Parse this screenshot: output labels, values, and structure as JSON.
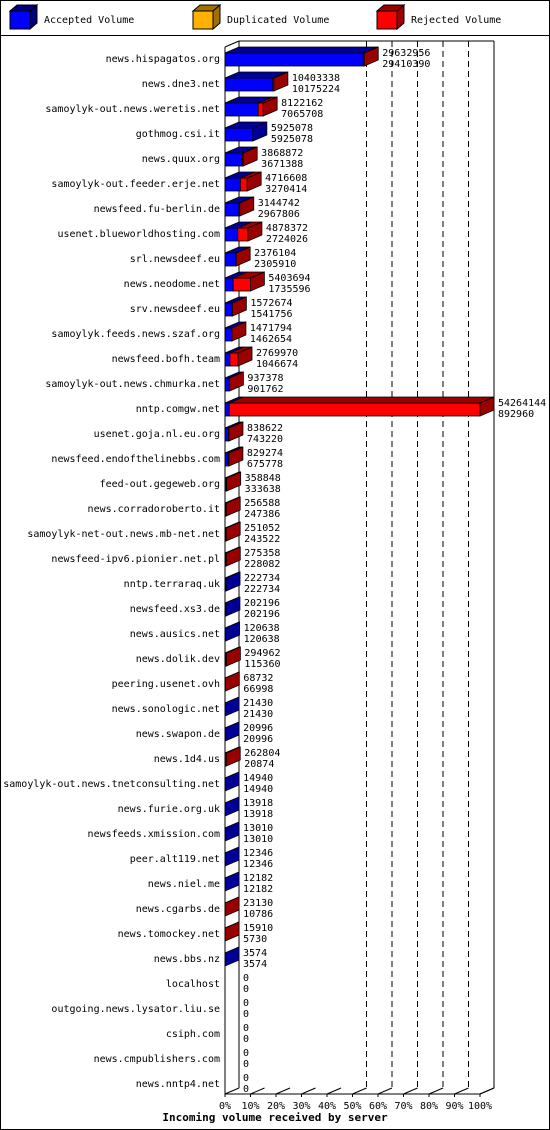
{
  "legend": [
    {
      "label": "Accepted Volume",
      "color": "#0000ff"
    },
    {
      "label": "Duplicated Volume",
      "color": "#ffb000"
    },
    {
      "label": "Rejected Volume",
      "color": "#ff0000"
    }
  ],
  "chart_data": {
    "type": "bar",
    "orientation": "horizontal",
    "title": "",
    "xlabel": "Incoming volume received by server",
    "ylabel": "",
    "xlim": [
      0,
      100
    ],
    "x_ticks": [
      "0%",
      "10%",
      "20%",
      "30%",
      "40%",
      "50%",
      "60%",
      "70%",
      "80%",
      "90%",
      "100%"
    ],
    "grid": "vertical dashed lines at 60%-100%",
    "legend_position": "top",
    "scale_max_value": 54264144,
    "series": [
      {
        "name": "Accepted Volume",
        "color": "#0000ff"
      },
      {
        "name": "Duplicated Volume",
        "color": "#ffb000"
      },
      {
        "name": "Rejected Volume",
        "color": "#ff0000"
      }
    ],
    "rows": [
      {
        "server": "news.hispagatos.org",
        "total": 29632956,
        "accepted": 29410390
      },
      {
        "server": "news.dne3.net",
        "total": 10403338,
        "accepted": 10175224
      },
      {
        "server": "samoylyk-out.news.weretis.net",
        "total": 8122162,
        "accepted": 7065708
      },
      {
        "server": "gothmog.csi.it",
        "total": 5925078,
        "accepted": 5925078
      },
      {
        "server": "news.quux.org",
        "total": 3868872,
        "accepted": 3671388
      },
      {
        "server": "samoylyk-out.feeder.erje.net",
        "total": 4716608,
        "accepted": 3270414
      },
      {
        "server": "newsfeed.fu-berlin.de",
        "total": 3144742,
        "accepted": 2967806
      },
      {
        "server": "usenet.blueworldhosting.com",
        "total": 4878372,
        "accepted": 2724026
      },
      {
        "server": "srl.newsdeef.eu",
        "total": 2376104,
        "accepted": 2305910
      },
      {
        "server": "news.neodome.net",
        "total": 5403694,
        "accepted": 1735596
      },
      {
        "server": "srv.newsdeef.eu",
        "total": 1572674,
        "accepted": 1541756
      },
      {
        "server": "samoylyk.feeds.news.szaf.org",
        "total": 1471794,
        "accepted": 1462654
      },
      {
        "server": "newsfeed.bofh.team",
        "total": 2769970,
        "accepted": 1046674
      },
      {
        "server": "samoylyk-out.news.chmurka.net",
        "total": 937378,
        "accepted": 901762
      },
      {
        "server": "nntp.comgw.net",
        "total": 54264144,
        "accepted": 892960
      },
      {
        "server": "usenet.goja.nl.eu.org",
        "total": 838622,
        "accepted": 743220
      },
      {
        "server": "newsfeed.endofthelinebbs.com",
        "total": 829274,
        "accepted": 675778
      },
      {
        "server": "feed-out.gegeweb.org",
        "total": 358848,
        "accepted": 333638
      },
      {
        "server": "news.corradoroberto.it",
        "total": 256588,
        "accepted": 247386
      },
      {
        "server": "samoylyk-net-out.news.mb-net.net",
        "total": 251052,
        "accepted": 243522
      },
      {
        "server": "newsfeed-ipv6.pionier.net.pl",
        "total": 275358,
        "accepted": 228082
      },
      {
        "server": "nntp.terraraq.uk",
        "total": 222734,
        "accepted": 222734
      },
      {
        "server": "newsfeed.xs3.de",
        "total": 202196,
        "accepted": 202196
      },
      {
        "server": "news.ausics.net",
        "total": 120638,
        "accepted": 120638
      },
      {
        "server": "news.dolik.dev",
        "total": 294962,
        "accepted": 115360
      },
      {
        "server": "peering.usenet.ovh",
        "total": 68732,
        "accepted": 66998
      },
      {
        "server": "news.sonologic.net",
        "total": 21430,
        "accepted": 21430
      },
      {
        "server": "news.swapon.de",
        "total": 20996,
        "accepted": 20996
      },
      {
        "server": "news.1d4.us",
        "total": 262804,
        "accepted": 20874
      },
      {
        "server": "samoylyk-out.news.tnetconsulting.net",
        "total": 14940,
        "accepted": 14940
      },
      {
        "server": "news.furie.org.uk",
        "total": 13918,
        "accepted": 13918
      },
      {
        "server": "newsfeeds.xmission.com",
        "total": 13010,
        "accepted": 13010
      },
      {
        "server": "peer.alt119.net",
        "total": 12346,
        "accepted": 12346
      },
      {
        "server": "news.niel.me",
        "total": 12182,
        "accepted": 12182
      },
      {
        "server": "news.cgarbs.de",
        "total": 23130,
        "accepted": 10786
      },
      {
        "server": "news.tomockey.net",
        "total": 15910,
        "accepted": 5730
      },
      {
        "server": "news.bbs.nz",
        "total": 3574,
        "accepted": 3574
      },
      {
        "server": "localhost",
        "total": 0,
        "accepted": 0
      },
      {
        "server": "outgoing.news.lysator.liu.se",
        "total": 0,
        "accepted": 0
      },
      {
        "server": "csiph.com",
        "total": 0,
        "accepted": 0
      },
      {
        "server": "news.cmpublishers.com",
        "total": 0,
        "accepted": 0
      },
      {
        "server": "news.nntp4.net",
        "total": 0,
        "accepted": 0
      }
    ]
  }
}
